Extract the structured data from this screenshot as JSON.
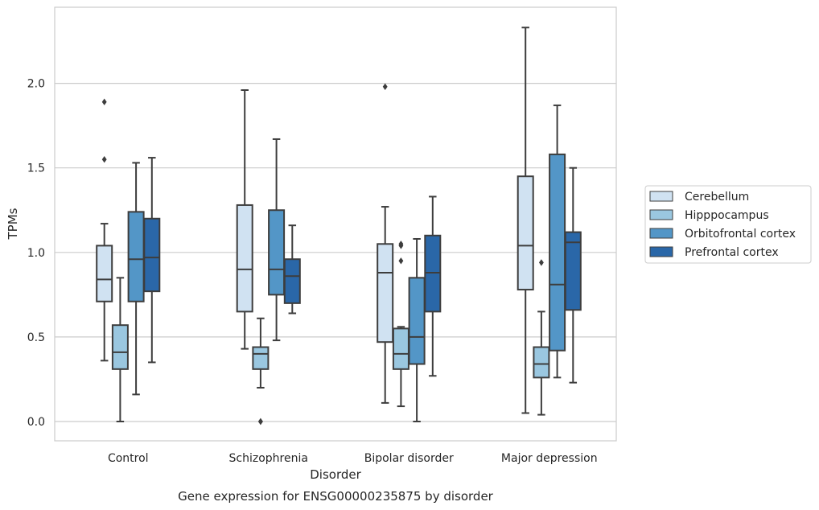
{
  "chart_data": {
    "type": "box",
    "title": "",
    "caption": "Gene expression for ENSG00000235875 by disorder",
    "xlabel": "Disorder",
    "ylabel": "TPMs",
    "ylim": [
      -0.11,
      2.45
    ],
    "yticks": [
      0.0,
      0.5,
      1.0,
      1.5,
      2.0
    ],
    "ytick_labels": [
      "0.0",
      "0.5",
      "1.0",
      "1.5",
      "2.0"
    ],
    "categories": [
      "Control",
      "Schizophrenia",
      "Bipolar disorder",
      "Major depression"
    ],
    "grid": "horizontal",
    "legend_position": "right",
    "series": [
      {
        "name": "Cerebellum",
        "color": "#d0e2f2",
        "boxes": [
          {
            "whislo": 0.36,
            "q1": 0.71,
            "med": 0.84,
            "q3": 1.04,
            "whishi": 1.17,
            "fliers": [
              1.55,
              1.89
            ]
          },
          {
            "whislo": 0.43,
            "q1": 0.65,
            "med": 0.9,
            "q3": 1.28,
            "whishi": 1.96,
            "fliers": []
          },
          {
            "whislo": 0.11,
            "q1": 0.47,
            "med": 0.88,
            "q3": 1.05,
            "whishi": 1.27,
            "fliers": [
              1.98
            ]
          },
          {
            "whislo": 0.05,
            "q1": 0.78,
            "med": 1.04,
            "q3": 1.45,
            "whishi": 2.33,
            "fliers": []
          }
        ]
      },
      {
        "name": "Hipppocampus",
        "color": "#9ac7e0",
        "boxes": [
          {
            "whislo": 0.0,
            "q1": 0.31,
            "med": 0.41,
            "q3": 0.57,
            "whishi": 0.85,
            "fliers": []
          },
          {
            "whislo": 0.2,
            "q1": 0.31,
            "med": 0.4,
            "q3": 0.44,
            "whishi": 0.61,
            "fliers": [
              0.0,
              0.0
            ]
          },
          {
            "whislo": 0.09,
            "q1": 0.31,
            "med": 0.4,
            "q3": 0.55,
            "whishi": 0.56,
            "fliers": [
              0.95,
              1.04,
              1.05
            ]
          },
          {
            "whislo": 0.04,
            "q1": 0.26,
            "med": 0.34,
            "q3": 0.44,
            "whishi": 0.65,
            "fliers": [
              0.94
            ]
          }
        ]
      },
      {
        "name": "Orbitofrontal cortex",
        "color": "#5396c7",
        "boxes": [
          {
            "whislo": 0.16,
            "q1": 0.71,
            "med": 0.96,
            "q3": 1.24,
            "whishi": 1.53,
            "fliers": []
          },
          {
            "whislo": 0.48,
            "q1": 0.75,
            "med": 0.9,
            "q3": 1.25,
            "whishi": 1.67,
            "fliers": []
          },
          {
            "whislo": 0.0,
            "q1": 0.34,
            "med": 0.5,
            "q3": 0.85,
            "whishi": 1.08,
            "fliers": []
          },
          {
            "whislo": 0.26,
            "q1": 0.42,
            "med": 0.81,
            "q3": 1.58,
            "whishi": 1.87,
            "fliers": []
          }
        ]
      },
      {
        "name": "Prefrontal cortex",
        "color": "#2a67a8",
        "boxes": [
          {
            "whislo": 0.35,
            "q1": 0.77,
            "med": 0.97,
            "q3": 1.2,
            "whishi": 1.56,
            "fliers": []
          },
          {
            "whislo": 0.64,
            "q1": 0.7,
            "med": 0.86,
            "q3": 0.96,
            "whishi": 1.16,
            "fliers": []
          },
          {
            "whislo": 0.27,
            "q1": 0.65,
            "med": 0.88,
            "q3": 1.1,
            "whishi": 1.33,
            "fliers": []
          },
          {
            "whislo": 0.23,
            "q1": 0.66,
            "med": 1.06,
            "q3": 1.12,
            "whishi": 1.5,
            "fliers": []
          }
        ]
      }
    ]
  }
}
